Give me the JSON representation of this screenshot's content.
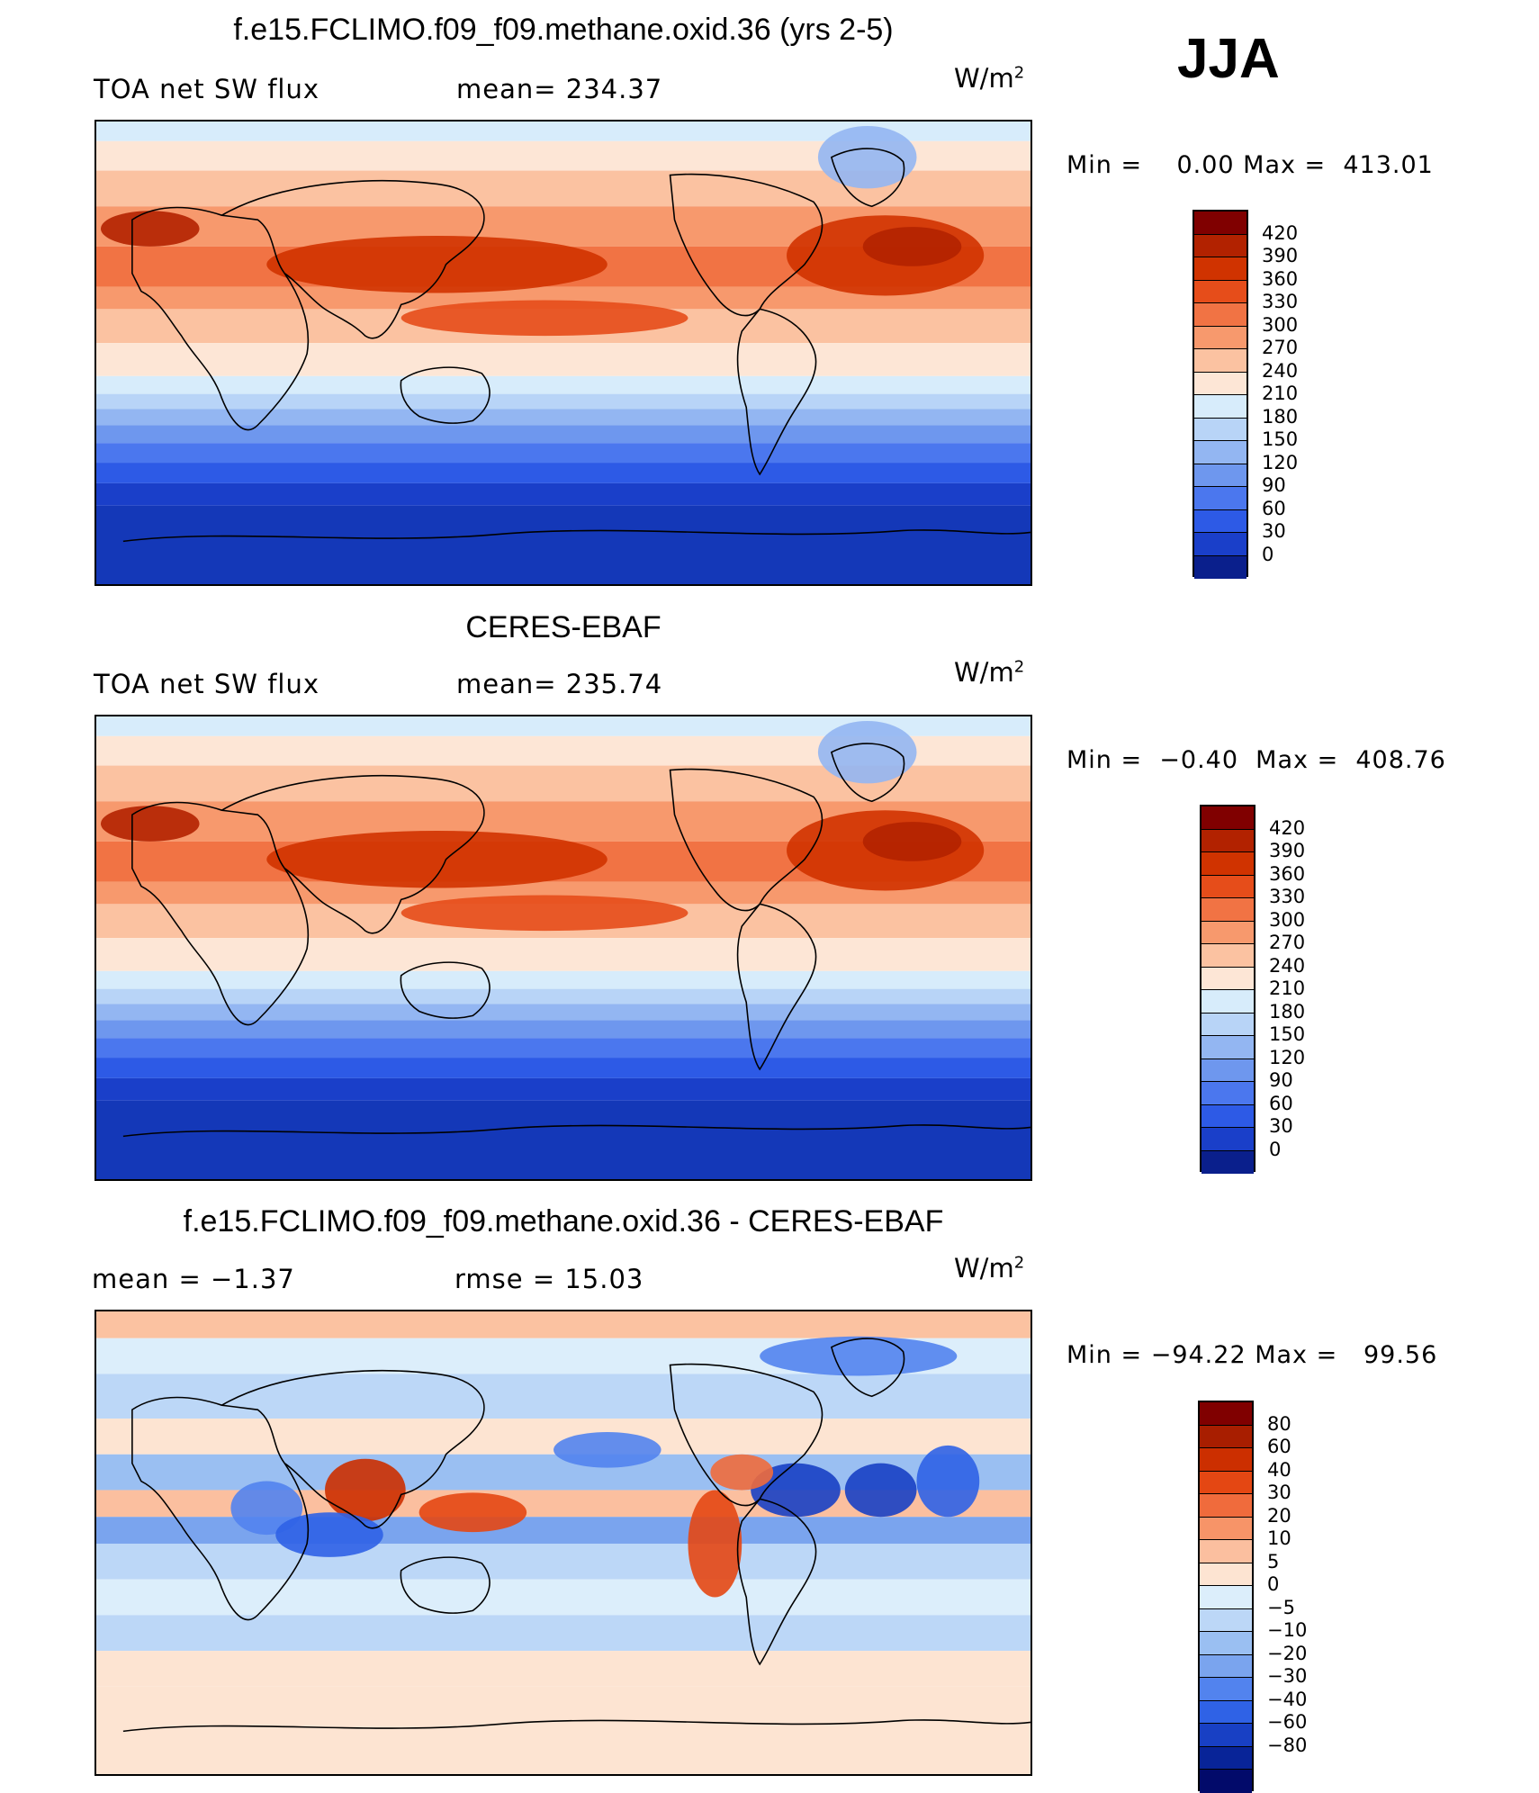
{
  "season": "JJA",
  "panels": [
    {
      "title": "f.e15.FCLIMO.f09_f09.methane.oxid.36 (yrs 2-5)",
      "left": "TOA net SW flux",
      "mid": "mean=  234.37",
      "units": "W/m",
      "units_sup": "2",
      "minmax": "Min =    0.00 Max =  413.01",
      "palette": [
        "#800000",
        "#b22200",
        "#d03300",
        "#e64d1a",
        "#f17344",
        "#f7996d",
        "#fbc2a1",
        "#fde6d6",
        "#d7ecfb",
        "#b8d4f7",
        "#93b6f2",
        "#6e97ee",
        "#4b77ee",
        "#2d5ae6",
        "#1a3fc9",
        "#0a1f8c"
      ],
      "labels": [
        "420",
        "390",
        "360",
        "330",
        "300",
        "270",
        "240",
        "210",
        "180",
        "150",
        "120",
        "90",
        "60",
        "30",
        "0"
      ],
      "map_type": "abs"
    },
    {
      "title": "CERES-EBAF",
      "left": "TOA net SW flux",
      "mid": "mean=  235.74",
      "units": "W/m",
      "units_sup": "2",
      "minmax": "Min =  −0.40  Max =  408.76",
      "palette": [
        "#800000",
        "#b22200",
        "#d03300",
        "#e64d1a",
        "#f17344",
        "#f7996d",
        "#fbc2a1",
        "#fde6d6",
        "#d7ecfb",
        "#b8d4f7",
        "#93b6f2",
        "#6e97ee",
        "#4b77ee",
        "#2d5ae6",
        "#1a3fc9",
        "#0a1f8c"
      ],
      "labels": [
        "420",
        "390",
        "360",
        "330",
        "300",
        "270",
        "240",
        "210",
        "180",
        "150",
        "120",
        "90",
        "60",
        "30",
        "0"
      ],
      "map_type": "abs"
    },
    {
      "title": "f.e15.FCLIMO.f09_f09.methane.oxid.36 - CERES-EBAF",
      "left": "mean =   −1.37",
      "mid": "rmse =    15.03",
      "units": "W/m",
      "units_sup": "2",
      "minmax": "Min = −94.22 Max =   99.56",
      "palette": [
        "#800000",
        "#a81e00",
        "#cc2f00",
        "#e44713",
        "#f06b3c",
        "#f79468",
        "#fbbf9f",
        "#fde4d2",
        "#dceefb",
        "#bcd7f7",
        "#9abff2",
        "#7aa4ee",
        "#5283ee",
        "#2f62e6",
        "#1840c4",
        "#082498",
        "#020a6a"
      ],
      "labels": [
        "80",
        "60",
        "40",
        "30",
        "20",
        "10",
        "5",
        "0",
        "−5",
        "−10",
        "−20",
        "−30",
        "−40",
        "−60",
        "−80"
      ],
      "map_type": "diff"
    }
  ],
  "icons": {
    "coastline": "world-coastline-outline"
  }
}
